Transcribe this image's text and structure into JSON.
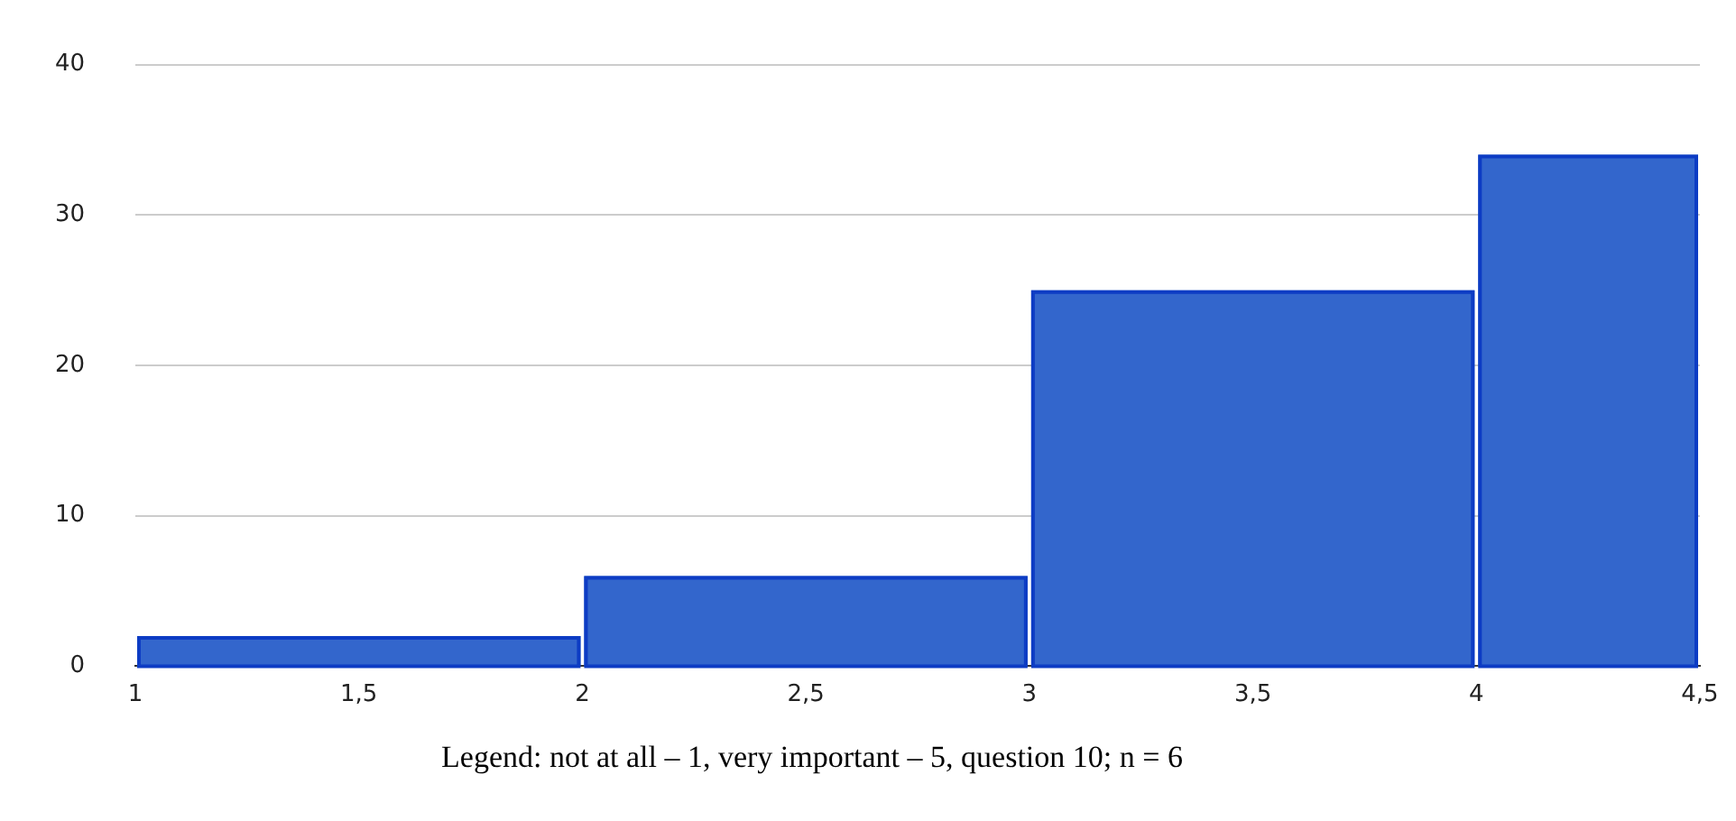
{
  "chart_data": {
    "type": "histogram",
    "bins": [
      1,
      2,
      3,
      4,
      4.5
    ],
    "values": [
      2,
      6,
      25,
      34
    ],
    "color": "#3366cc",
    "xlim": [
      1,
      4.5
    ],
    "xticks": [
      1,
      {
        "value": 1.5,
        "label": "1,5"
      },
      2,
      {
        "value": 2.5,
        "label": "2,5"
      },
      3,
      {
        "value": 3.5,
        "label": "3,5"
      },
      4,
      {
        "value": 4.5,
        "label": "4,5"
      }
    ],
    "ylim": [
      0,
      40
    ],
    "yticks": [
      0,
      10,
      20,
      30,
      40
    ],
    "grid": "y",
    "legend": false,
    "annotations": [
      "Legend: not at all – 1, very important – 5, question 10; n = 6"
    ]
  }
}
